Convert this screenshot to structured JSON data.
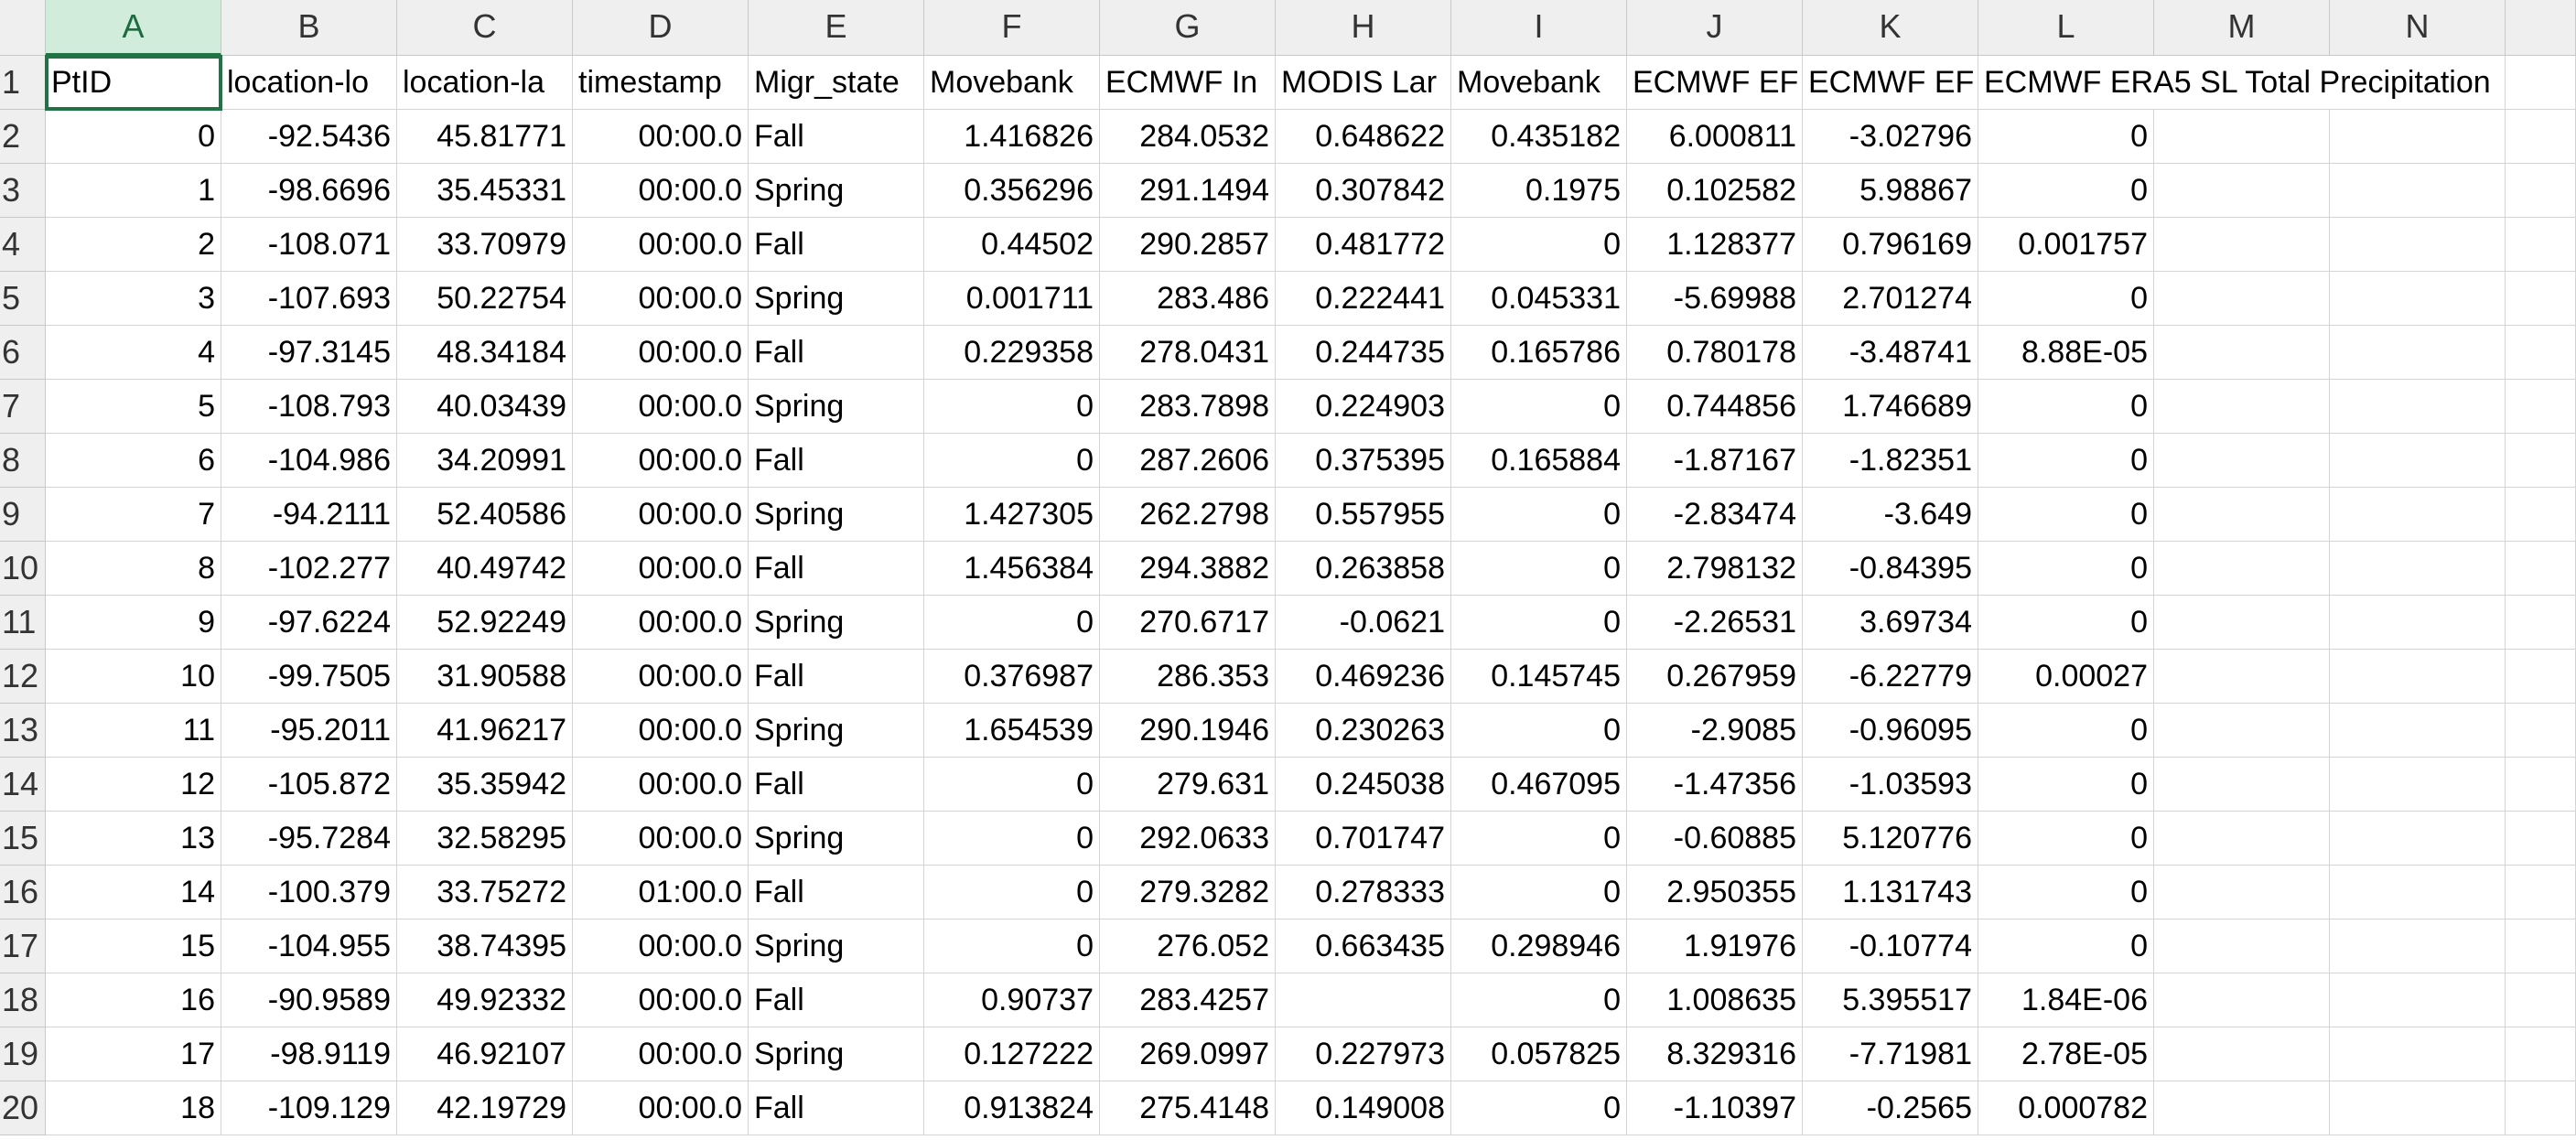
{
  "columns": [
    "A",
    "B",
    "C",
    "D",
    "E",
    "F",
    "G",
    "H",
    "I",
    "J",
    "K",
    "L",
    "M",
    "N"
  ],
  "row_numbers": [
    1,
    2,
    3,
    4,
    5,
    6,
    7,
    8,
    9,
    10,
    11,
    12,
    13,
    14,
    15,
    16,
    17,
    18,
    19,
    20
  ],
  "rows": [
    [
      "PtID",
      "location-lo",
      "location-la",
      "timestamp",
      "Migr_state",
      "Movebank",
      "ECMWF In",
      "MODIS Lar",
      "Movebank",
      "ECMWF EF",
      "ECMWF EF",
      "ECMWF ERA5 SL Total Precipitation"
    ],
    [
      "0",
      "-92.5436",
      "45.81771",
      "00:00.0",
      "Fall",
      "1.416826",
      "284.0532",
      "0.648622",
      "0.435182",
      "6.000811",
      "-3.02796",
      "0"
    ],
    [
      "1",
      "-98.6696",
      "35.45331",
      "00:00.0",
      "Spring",
      "0.356296",
      "291.1494",
      "0.307842",
      "0.1975",
      "0.102582",
      "5.98867",
      "0"
    ],
    [
      "2",
      "-108.071",
      "33.70979",
      "00:00.0",
      "Fall",
      "0.44502",
      "290.2857",
      "0.481772",
      "0",
      "1.128377",
      "0.796169",
      "0.001757"
    ],
    [
      "3",
      "-107.693",
      "50.22754",
      "00:00.0",
      "Spring",
      "0.001711",
      "283.486",
      "0.222441",
      "0.045331",
      "-5.69988",
      "2.701274",
      "0"
    ],
    [
      "4",
      "-97.3145",
      "48.34184",
      "00:00.0",
      "Fall",
      "0.229358",
      "278.0431",
      "0.244735",
      "0.165786",
      "0.780178",
      "-3.48741",
      "8.88E-05"
    ],
    [
      "5",
      "-108.793",
      "40.03439",
      "00:00.0",
      "Spring",
      "0",
      "283.7898",
      "0.224903",
      "0",
      "0.744856",
      "1.746689",
      "0"
    ],
    [
      "6",
      "-104.986",
      "34.20991",
      "00:00.0",
      "Fall",
      "0",
      "287.2606",
      "0.375395",
      "0.165884",
      "-1.87167",
      "-1.82351",
      "0"
    ],
    [
      "7",
      "-94.2111",
      "52.40586",
      "00:00.0",
      "Spring",
      "1.427305",
      "262.2798",
      "0.557955",
      "0",
      "-2.83474",
      "-3.649",
      "0"
    ],
    [
      "8",
      "-102.277",
      "40.49742",
      "00:00.0",
      "Fall",
      "1.456384",
      "294.3882",
      "0.263858",
      "0",
      "2.798132",
      "-0.84395",
      "0"
    ],
    [
      "9",
      "-97.6224",
      "52.92249",
      "00:00.0",
      "Spring",
      "0",
      "270.6717",
      "-0.0621",
      "0",
      "-2.26531",
      "3.69734",
      "0"
    ],
    [
      "10",
      "-99.7505",
      "31.90588",
      "00:00.0",
      "Fall",
      "0.376987",
      "286.353",
      "0.469236",
      "0.145745",
      "0.267959",
      "-6.22779",
      "0.00027"
    ],
    [
      "11",
      "-95.2011",
      "41.96217",
      "00:00.0",
      "Spring",
      "1.654539",
      "290.1946",
      "0.230263",
      "0",
      "-2.9085",
      "-0.96095",
      "0"
    ],
    [
      "12",
      "-105.872",
      "35.35942",
      "00:00.0",
      "Fall",
      "0",
      "279.631",
      "0.245038",
      "0.467095",
      "-1.47356",
      "-1.03593",
      "0"
    ],
    [
      "13",
      "-95.7284",
      "32.58295",
      "00:00.0",
      "Spring",
      "0",
      "292.0633",
      "0.701747",
      "0",
      "-0.60885",
      "5.120776",
      "0"
    ],
    [
      "14",
      "-100.379",
      "33.75272",
      "01:00.0",
      "Fall",
      "0",
      "279.3282",
      "0.278333",
      "0",
      "2.950355",
      "1.131743",
      "0"
    ],
    [
      "15",
      "-104.955",
      "38.74395",
      "00:00.0",
      "Spring",
      "0",
      "276.052",
      "0.663435",
      "0.298946",
      "1.91976",
      "-0.10774",
      "0"
    ],
    [
      "16",
      "-90.9589",
      "49.92332",
      "00:00.0",
      "Fall",
      "0.90737",
      "283.4257",
      null,
      "0",
      "1.008635",
      "5.395517",
      "1.84E-06"
    ],
    [
      "17",
      "-98.9119",
      "46.92107",
      "00:00.0",
      "Spring",
      "0.127222",
      "269.0997",
      "0.227973",
      "0.057825",
      "8.329316",
      "-7.71981",
      "2.78E-05"
    ],
    [
      "18",
      "-109.129",
      "42.19729",
      "00:00.0",
      "Fall",
      "0.913824",
      "275.4148",
      "0.149008",
      "0",
      "-1.10397",
      "-0.2565",
      "0.000782"
    ]
  ]
}
